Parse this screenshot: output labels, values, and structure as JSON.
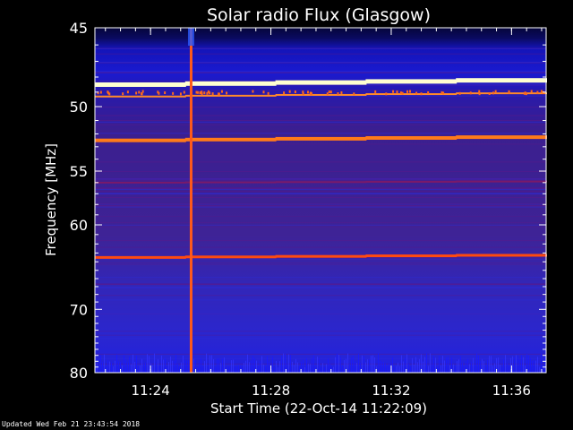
{
  "chart_data": {
    "type": "heatmap",
    "title": "Solar radio Flux (Glasgow)",
    "ylabel": "Frequency [MHz]",
    "xlabel": "Start Time (22-Oct-14 11:22:09)",
    "x_ticks": [
      "11:24",
      "11:28",
      "11:32",
      "11:36"
    ],
    "y_ticks": [
      45,
      50,
      55,
      60,
      70,
      80
    ],
    "y_range": [
      45,
      80
    ],
    "x_range": [
      "11:22:09",
      "11:37:09"
    ],
    "colors": {
      "background_low": "#3b1f8f",
      "high_band": "#1a1ad0",
      "low_band": "#2424e8",
      "hot": "#ff7a1a",
      "saturated": "#ffffd0",
      "top_dark": "#05053a"
    },
    "features": {
      "saturated_band_mhz": 48.5,
      "strong_band_mhz": 52.5,
      "medium_band_mhz": 63.5,
      "faint_band_mhz": 56.0,
      "burst_time": "11:25:20"
    }
  },
  "footer": {
    "updated": "Updated Wed Feb 21 23:43:54 2018"
  }
}
